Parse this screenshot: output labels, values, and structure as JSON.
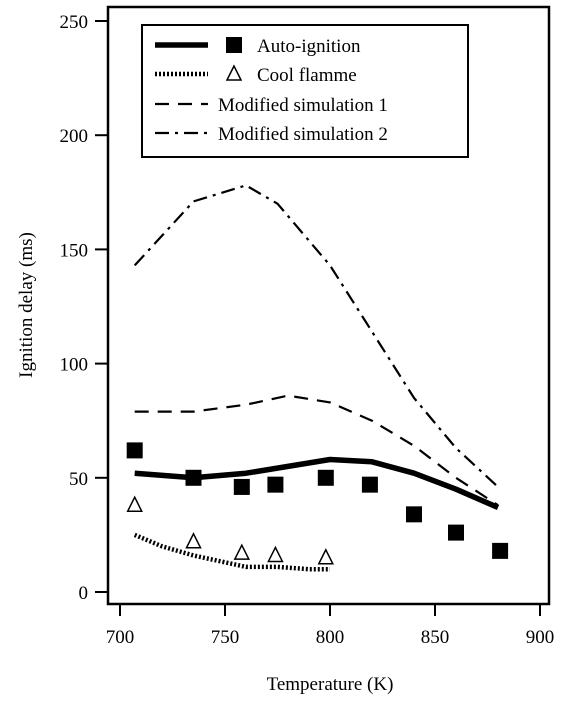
{
  "chart_data": {
    "type": "line",
    "title": "",
    "xlabel": "Temperature (K)",
    "ylabel": "Ignition delay (ms)",
    "xlim": [
      700,
      900
    ],
    "ylim": [
      0,
      250
    ],
    "xticks": [
      700,
      750,
      800,
      850,
      900
    ],
    "yticks": [
      0,
      50,
      100,
      150,
      200,
      250
    ],
    "grid": false,
    "legend_position": "top-right",
    "legend": [
      {
        "label": "Auto-ignition",
        "line": "solid-thick",
        "marker": "filled-square"
      },
      {
        "label": "Cool flamme",
        "line": "dotted",
        "marker": "open-triangle"
      },
      {
        "label": "Modified simulation 1",
        "line": "dashed",
        "marker": "none"
      },
      {
        "label": "Modified simulation 2",
        "line": "dash-dot",
        "marker": "none"
      }
    ],
    "series": [
      {
        "name": "Auto-ignition",
        "kind": "line",
        "style": "solid-thick",
        "x": [
          707,
          735,
          760,
          780,
          800,
          820,
          840,
          860,
          880
        ],
        "y": [
          52,
          50,
          52,
          55,
          58,
          57,
          52,
          45,
          37
        ]
      },
      {
        "name": "Cool flamme",
        "kind": "line",
        "style": "dotted",
        "x": [
          707,
          720,
          735,
          750,
          760,
          775,
          790,
          800
        ],
        "y": [
          25,
          20,
          16,
          13,
          11,
          11,
          10,
          10
        ]
      },
      {
        "name": "Modified simulation 1",
        "kind": "line",
        "style": "dashed",
        "x": [
          707,
          735,
          760,
          780,
          800,
          820,
          840,
          860,
          880
        ],
        "y": [
          79,
          79,
          82,
          86,
          83,
          75,
          64,
          50,
          38
        ]
      },
      {
        "name": "Modified simulation 2",
        "kind": "line",
        "style": "dash-dot",
        "x": [
          707,
          735,
          760,
          775,
          800,
          820,
          840,
          860,
          880
        ],
        "y": [
          143,
          171,
          178,
          170,
          143,
          114,
          85,
          63,
          46
        ]
      },
      {
        "name": "Auto-ignition",
        "kind": "markers",
        "marker": "filled-square",
        "x": [
          707,
          735,
          758,
          774,
          798,
          819,
          840,
          860,
          881
        ],
        "y": [
          62,
          50,
          46,
          47,
          50,
          47,
          34,
          26,
          18
        ]
      },
      {
        "name": "Cool flamme",
        "kind": "markers",
        "marker": "open-triangle",
        "x": [
          707,
          735,
          758,
          774,
          798
        ],
        "y": [
          38,
          22,
          17,
          16,
          15
        ]
      }
    ]
  }
}
